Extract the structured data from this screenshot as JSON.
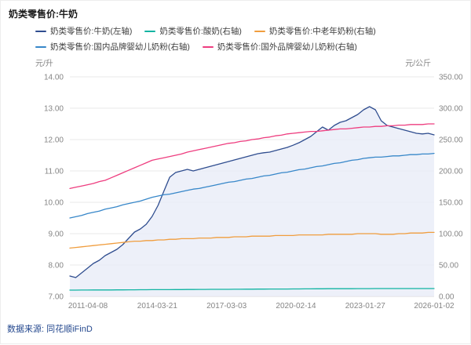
{
  "header": {
    "title": "奶类零售价:牛奶"
  },
  "footer": {
    "source": "数据来源: 同花顺iFinD"
  },
  "chart_data": {
    "type": "line",
    "title": "奶类零售价:牛奶",
    "legend_position": "top",
    "grid": true,
    "left_axis": {
      "unit": "元/升",
      "min": 7,
      "max": 14,
      "tick_labels": [
        "7.00",
        "8.00",
        "9.00",
        "10.00",
        "11.00",
        "12.00",
        "13.00",
        "14.00"
      ]
    },
    "right_axis": {
      "unit": "元/公斤",
      "min": 0,
      "max": 350,
      "tick_labels": [
        "0.00",
        "50.00",
        "100.00",
        "150.00",
        "200.00",
        "250.00",
        "300.00",
        "350.00"
      ]
    },
    "x_axis": {
      "range": [
        2010.5,
        2026.0
      ],
      "ticks": [
        {
          "v": 2011.27,
          "label": "2011-04-08"
        },
        {
          "v": 2014.22,
          "label": "2014-03-21"
        },
        {
          "v": 2017.17,
          "label": "2017-03-03"
        },
        {
          "v": 2020.12,
          "label": "2020-02-14"
        },
        {
          "v": 2023.07,
          "label": "2023-01-27"
        },
        {
          "v": 2026.0,
          "label": "2026-01-02"
        }
      ]
    },
    "x": [
      2010.5,
      2010.75,
      2011,
      2011.25,
      2011.5,
      2011.75,
      2012,
      2012.25,
      2012.5,
      2012.75,
      2013,
      2013.25,
      2013.5,
      2013.75,
      2014,
      2014.25,
      2014.5,
      2014.75,
      2015,
      2015.25,
      2015.5,
      2015.75,
      2016,
      2016.25,
      2016.5,
      2016.75,
      2017,
      2017.25,
      2017.5,
      2017.75,
      2018,
      2018.25,
      2018.5,
      2018.75,
      2019,
      2019.25,
      2019.5,
      2019.75,
      2020,
      2020.25,
      2020.5,
      2020.75,
      2021,
      2021.25,
      2021.5,
      2021.75,
      2022,
      2022.25,
      2022.5,
      2022.75,
      2023,
      2023.25,
      2023.5,
      2023.75,
      2024,
      2024.25,
      2024.5,
      2024.75,
      2025,
      2025.25,
      2025.5,
      2025.75,
      2026
    ],
    "series": [
      {
        "name": "奶类零售价:牛奶(左轴)",
        "axis": "left",
        "color": "#2f4d8f",
        "area_fill": "#e9ecf7",
        "values": [
          7.65,
          7.6,
          7.75,
          7.9,
          8.05,
          8.15,
          8.3,
          8.4,
          8.5,
          8.65,
          8.85,
          9.05,
          9.15,
          9.3,
          9.55,
          9.9,
          10.35,
          10.8,
          10.95,
          11.0,
          11.05,
          11.0,
          11.05,
          11.1,
          11.15,
          11.2,
          11.25,
          11.3,
          11.35,
          11.4,
          11.45,
          11.5,
          11.55,
          11.58,
          11.6,
          11.65,
          11.7,
          11.75,
          11.82,
          11.9,
          12.0,
          12.1,
          12.25,
          12.4,
          12.3,
          12.45,
          12.55,
          12.6,
          12.7,
          12.8,
          12.95,
          13.05,
          12.95,
          12.6,
          12.45,
          12.4,
          12.35,
          12.3,
          12.25,
          12.2,
          12.18,
          12.2,
          12.15
        ]
      },
      {
        "name": "奶类零售价:酸奶(右轴)",
        "axis": "right",
        "color": "#10b3a2",
        "values": [
          10,
          10,
          10.1,
          10.1,
          10.2,
          10.2,
          10.3,
          10.3,
          10.4,
          10.4,
          10.5,
          10.5,
          10.6,
          10.6,
          10.7,
          10.7,
          10.8,
          10.8,
          10.9,
          10.9,
          11,
          11,
          11.1,
          11.1,
          11.2,
          11.2,
          11.3,
          11.3,
          11.4,
          11.4,
          11.5,
          11.5,
          11.6,
          11.6,
          11.7,
          11.7,
          11.8,
          11.8,
          11.9,
          11.9,
          12,
          12,
          12.1,
          12.1,
          12.2,
          12.2,
          12.3,
          12.3,
          12.3,
          12.4,
          12.4,
          12.4,
          12.5,
          12.5,
          12.5,
          12.5,
          12.5,
          12.5,
          12.5,
          12.5,
          12.5,
          12.5,
          12.5
        ]
      },
      {
        "name": "奶类零售价:中老年奶粉(右轴)",
        "axis": "right",
        "color": "#f09d3e",
        "values": [
          77,
          78,
          79,
          80,
          81,
          82,
          83,
          84,
          85,
          86,
          87,
          88,
          88,
          89,
          89,
          90,
          90,
          91,
          91,
          92,
          92,
          92,
          93,
          93,
          93,
          94,
          94,
          94,
          95,
          95,
          95,
          96,
          96,
          96,
          96,
          97,
          97,
          97,
          97,
          98,
          98,
          98,
          98,
          98,
          99,
          99,
          99,
          99,
          99,
          100,
          100,
          100,
          100,
          99,
          99,
          99,
          100,
          100,
          101,
          101,
          101,
          102,
          102
        ]
      },
      {
        "name": "奶类零售价:国内品牌婴幼儿奶粉(右轴)",
        "axis": "right",
        "color": "#3787c9",
        "values": [
          125,
          127,
          129,
          132,
          134,
          136,
          139,
          141,
          143,
          146,
          148,
          150,
          152,
          155,
          158,
          160,
          162,
          163,
          165,
          167,
          169,
          171,
          172,
          174,
          176,
          178,
          180,
          182,
          183,
          185,
          187,
          188,
          190,
          192,
          193,
          195,
          197,
          198,
          200,
          202,
          203,
          205,
          207,
          208,
          210,
          212,
          213,
          215,
          217,
          218,
          220,
          221,
          222,
          222,
          223,
          224,
          224,
          225,
          226,
          226,
          227,
          227,
          228
        ]
      },
      {
        "name": "奶类零售价:国外品牌婴幼儿奶粉(右轴)",
        "axis": "right",
        "color": "#ee3d7f",
        "values": [
          172,
          174,
          176,
          178,
          180,
          183,
          185,
          189,
          193,
          197,
          201,
          205,
          209,
          213,
          217,
          219,
          221,
          223,
          225,
          227,
          230,
          232,
          234,
          236,
          238,
          240,
          242,
          244,
          245,
          247,
          248,
          250,
          251,
          253,
          254,
          256,
          257,
          259,
          260,
          261,
          262,
          263,
          263,
          264,
          265,
          266,
          267,
          267,
          268,
          269,
          270,
          270,
          271,
          271,
          272,
          272,
          273,
          273,
          274,
          274,
          274,
          275,
          275
        ]
      }
    ]
  }
}
